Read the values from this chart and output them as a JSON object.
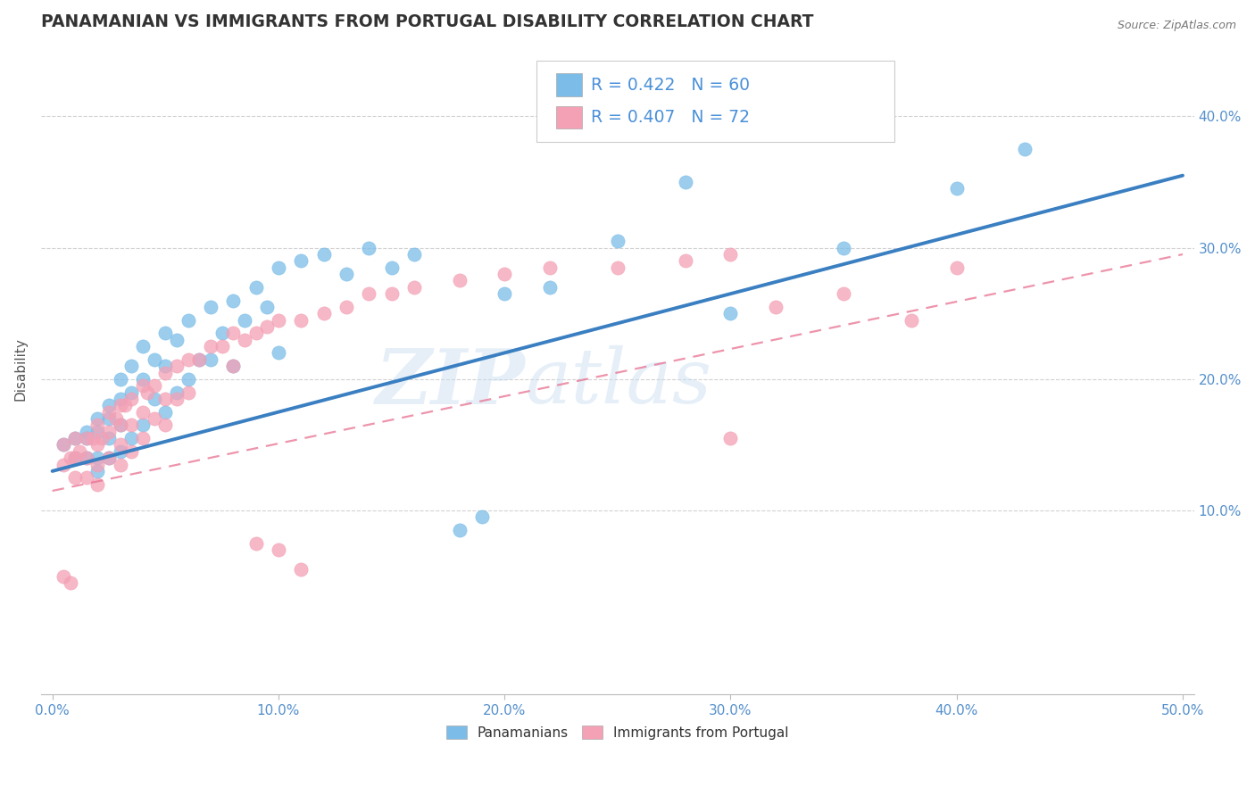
{
  "title": "PANAMANIAN VS IMMIGRANTS FROM PORTUGAL DISABILITY CORRELATION CHART",
  "source": "Source: ZipAtlas.com",
  "xlabel_ticks": [
    "0.0%",
    "10.0%",
    "20.0%",
    "30.0%",
    "40.0%",
    "50.0%"
  ],
  "xlabel_vals": [
    0.0,
    0.1,
    0.2,
    0.3,
    0.4,
    0.5
  ],
  "ylabel": "Disability",
  "ylabel_ticks": [
    "10.0%",
    "20.0%",
    "30.0%",
    "40.0%"
  ],
  "ylabel_vals": [
    0.1,
    0.2,
    0.3,
    0.4
  ],
  "xlim": [
    -0.005,
    0.505
  ],
  "ylim": [
    -0.04,
    0.455
  ],
  "legend1_label": "R = 0.422   N = 60",
  "legend2_label": "R = 0.407   N = 72",
  "legend_bottom_label1": "Panamanians",
  "legend_bottom_label2": "Immigrants from Portugal",
  "color_blue": "#7bbde8",
  "color_pink": "#f4a0b5",
  "color_blue_line": "#3a7fc1",
  "color_pink_line": "#e87090",
  "watermark_zip": "ZIP",
  "watermark_atlas": "atlas",
  "blue_line_x0": 0.0,
  "blue_line_y0": 0.13,
  "blue_line_x1": 0.5,
  "blue_line_y1": 0.355,
  "pink_line_x0": 0.0,
  "pink_line_y0": 0.115,
  "pink_line_x1": 0.5,
  "pink_line_y1": 0.295,
  "blue_scatter_x": [
    0.005,
    0.01,
    0.01,
    0.015,
    0.015,
    0.015,
    0.02,
    0.02,
    0.02,
    0.02,
    0.025,
    0.025,
    0.025,
    0.025,
    0.03,
    0.03,
    0.03,
    0.03,
    0.035,
    0.035,
    0.035,
    0.04,
    0.04,
    0.04,
    0.045,
    0.045,
    0.05,
    0.05,
    0.05,
    0.055,
    0.055,
    0.06,
    0.06,
    0.065,
    0.07,
    0.07,
    0.075,
    0.08,
    0.08,
    0.085,
    0.09,
    0.095,
    0.1,
    0.1,
    0.11,
    0.12,
    0.13,
    0.14,
    0.15,
    0.16,
    0.18,
    0.19,
    0.2,
    0.22,
    0.25,
    0.28,
    0.3,
    0.35,
    0.4,
    0.43
  ],
  "blue_scatter_y": [
    0.15,
    0.155,
    0.14,
    0.16,
    0.155,
    0.14,
    0.17,
    0.16,
    0.14,
    0.13,
    0.18,
    0.17,
    0.155,
    0.14,
    0.2,
    0.185,
    0.165,
    0.145,
    0.21,
    0.19,
    0.155,
    0.225,
    0.2,
    0.165,
    0.215,
    0.185,
    0.235,
    0.21,
    0.175,
    0.23,
    0.19,
    0.245,
    0.2,
    0.215,
    0.255,
    0.215,
    0.235,
    0.26,
    0.21,
    0.245,
    0.27,
    0.255,
    0.285,
    0.22,
    0.29,
    0.295,
    0.28,
    0.3,
    0.285,
    0.295,
    0.085,
    0.095,
    0.265,
    0.27,
    0.305,
    0.35,
    0.25,
    0.3,
    0.345,
    0.375
  ],
  "pink_scatter_x": [
    0.005,
    0.005,
    0.008,
    0.01,
    0.01,
    0.01,
    0.012,
    0.015,
    0.015,
    0.015,
    0.018,
    0.02,
    0.02,
    0.02,
    0.02,
    0.022,
    0.025,
    0.025,
    0.025,
    0.028,
    0.03,
    0.03,
    0.03,
    0.03,
    0.032,
    0.035,
    0.035,
    0.035,
    0.04,
    0.04,
    0.04,
    0.042,
    0.045,
    0.045,
    0.05,
    0.05,
    0.05,
    0.055,
    0.055,
    0.06,
    0.06,
    0.065,
    0.07,
    0.075,
    0.08,
    0.08,
    0.085,
    0.09,
    0.095,
    0.1,
    0.11,
    0.12,
    0.13,
    0.14,
    0.15,
    0.16,
    0.18,
    0.2,
    0.22,
    0.25,
    0.28,
    0.3,
    0.32,
    0.35,
    0.38,
    0.4,
    0.09,
    0.1,
    0.11,
    0.3,
    0.005,
    0.008
  ],
  "pink_scatter_y": [
    0.15,
    0.135,
    0.14,
    0.155,
    0.14,
    0.125,
    0.145,
    0.155,
    0.14,
    0.125,
    0.155,
    0.165,
    0.15,
    0.135,
    0.12,
    0.155,
    0.175,
    0.16,
    0.14,
    0.17,
    0.18,
    0.165,
    0.15,
    0.135,
    0.18,
    0.185,
    0.165,
    0.145,
    0.195,
    0.175,
    0.155,
    0.19,
    0.195,
    0.17,
    0.205,
    0.185,
    0.165,
    0.21,
    0.185,
    0.215,
    0.19,
    0.215,
    0.225,
    0.225,
    0.235,
    0.21,
    0.23,
    0.235,
    0.24,
    0.245,
    0.245,
    0.25,
    0.255,
    0.265,
    0.265,
    0.27,
    0.275,
    0.28,
    0.285,
    0.285,
    0.29,
    0.295,
    0.255,
    0.265,
    0.245,
    0.285,
    0.075,
    0.07,
    0.055,
    0.155,
    0.05,
    0.045
  ]
}
